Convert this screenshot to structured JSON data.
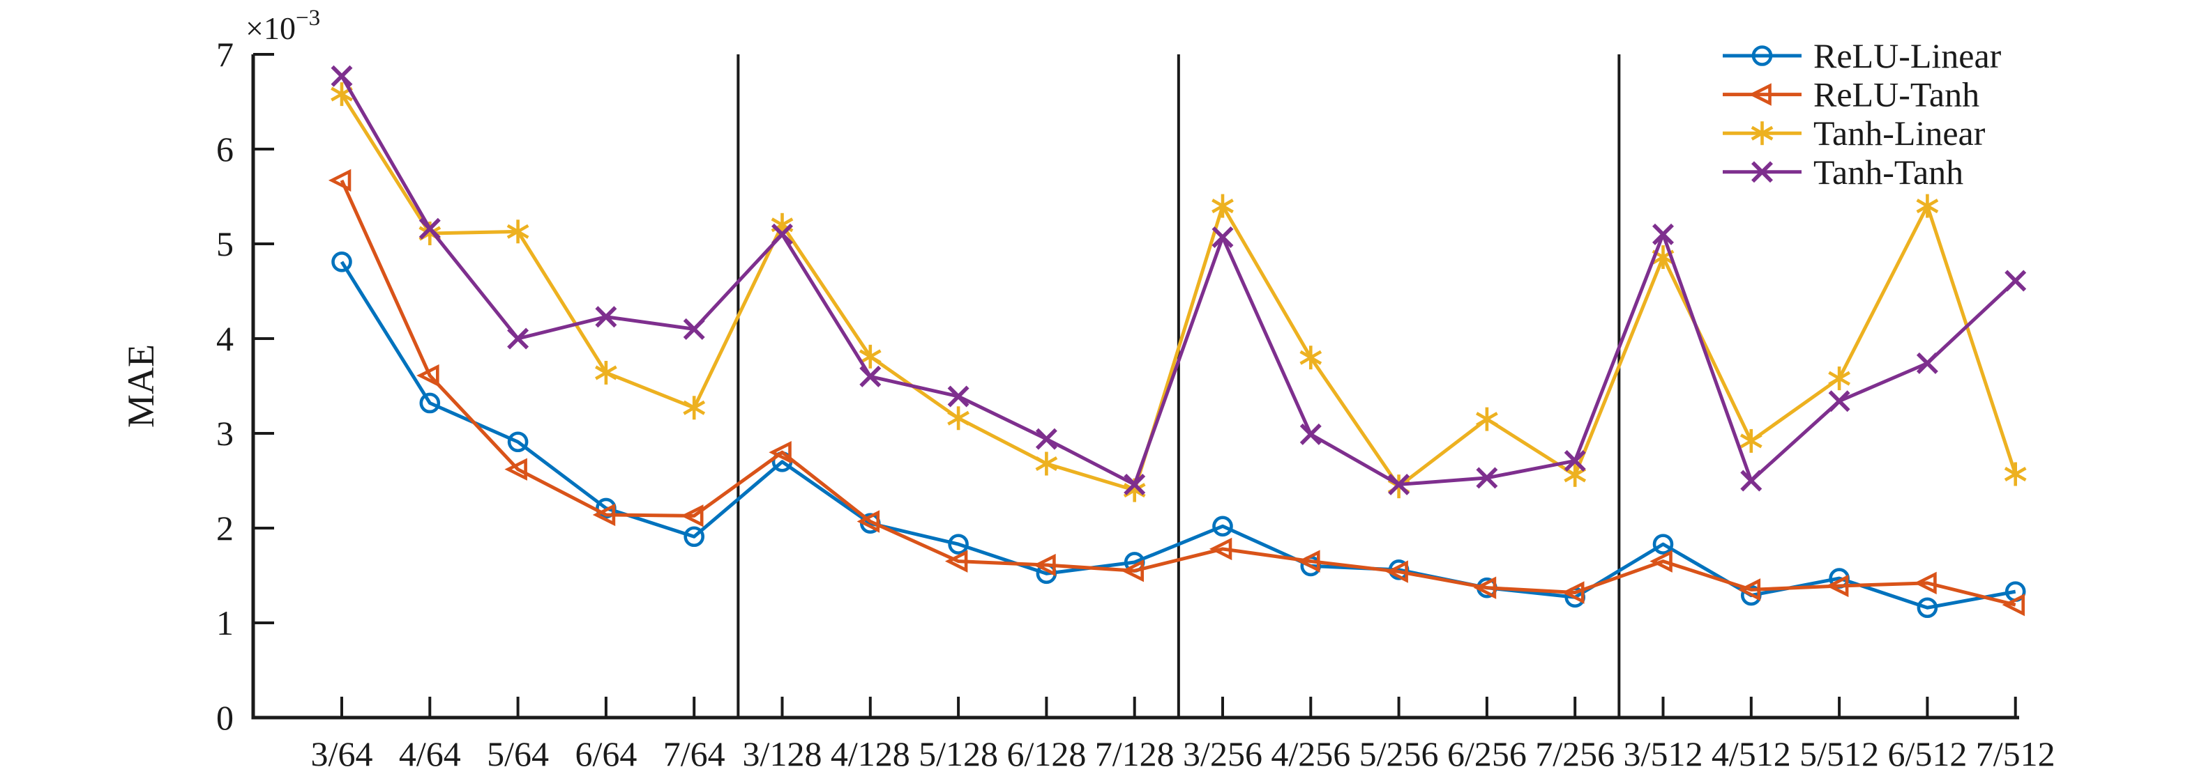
{
  "page": {
    "background": "#ffffff",
    "axis_color": "#1a1a1a",
    "text_color": "#1a1a1a"
  },
  "chart_data": {
    "type": "line",
    "title": "",
    "xlabel": "",
    "ylabel": "MAE",
    "y_scale": {
      "base": "×10",
      "exponent": "−3"
    },
    "ylim": [
      0,
      7
    ],
    "yticks": [
      "0",
      "1",
      "2",
      "3",
      "4",
      "5",
      "6",
      "7"
    ],
    "grid": false,
    "legend_position": "top-right",
    "categories": [
      "3/64",
      "4/64",
      "5/64",
      "6/64",
      "7/64",
      "3/128",
      "4/128",
      "5/128",
      "6/128",
      "7/128",
      "3/256",
      "4/256",
      "5/256",
      "6/256",
      "7/256",
      "3/512",
      "4/512",
      "5/512",
      "6/512",
      "7/512"
    ],
    "separators_after_index": [
      4,
      9,
      14
    ],
    "series": [
      {
        "name": "ReLU-Linear",
        "color": "#0072BD",
        "marker": "circle",
        "values": [
          4.81,
          3.32,
          2.91,
          2.21,
          1.91,
          2.7,
          2.05,
          1.83,
          1.52,
          1.64,
          2.02,
          1.6,
          1.56,
          1.37,
          1.27,
          1.83,
          1.29,
          1.47,
          1.16,
          1.33
        ]
      },
      {
        "name": "ReLU-Tanh",
        "color": "#D95319",
        "marker": "triangle-left",
        "values": [
          5.67,
          3.61,
          2.62,
          2.14,
          2.13,
          2.8,
          2.07,
          1.65,
          1.61,
          1.55,
          1.78,
          1.65,
          1.54,
          1.37,
          1.32,
          1.65,
          1.35,
          1.39,
          1.42,
          1.19
        ]
      },
      {
        "name": "Tanh-Linear",
        "color": "#EDB120",
        "marker": "asterisk",
        "values": [
          6.58,
          5.11,
          5.13,
          3.64,
          3.27,
          5.2,
          3.81,
          3.16,
          2.68,
          2.4,
          5.4,
          3.8,
          2.44,
          3.15,
          2.56,
          4.86,
          2.92,
          3.58,
          5.4,
          2.57
        ]
      },
      {
        "name": "Tanh-Tanh",
        "color": "#7E2F8E",
        "marker": "x",
        "values": [
          6.77,
          5.16,
          4.0,
          4.23,
          4.1,
          5.1,
          3.6,
          3.39,
          2.94,
          2.46,
          5.07,
          2.99,
          2.46,
          2.53,
          2.71,
          5.1,
          2.5,
          3.34,
          3.74,
          4.61
        ]
      }
    ]
  }
}
